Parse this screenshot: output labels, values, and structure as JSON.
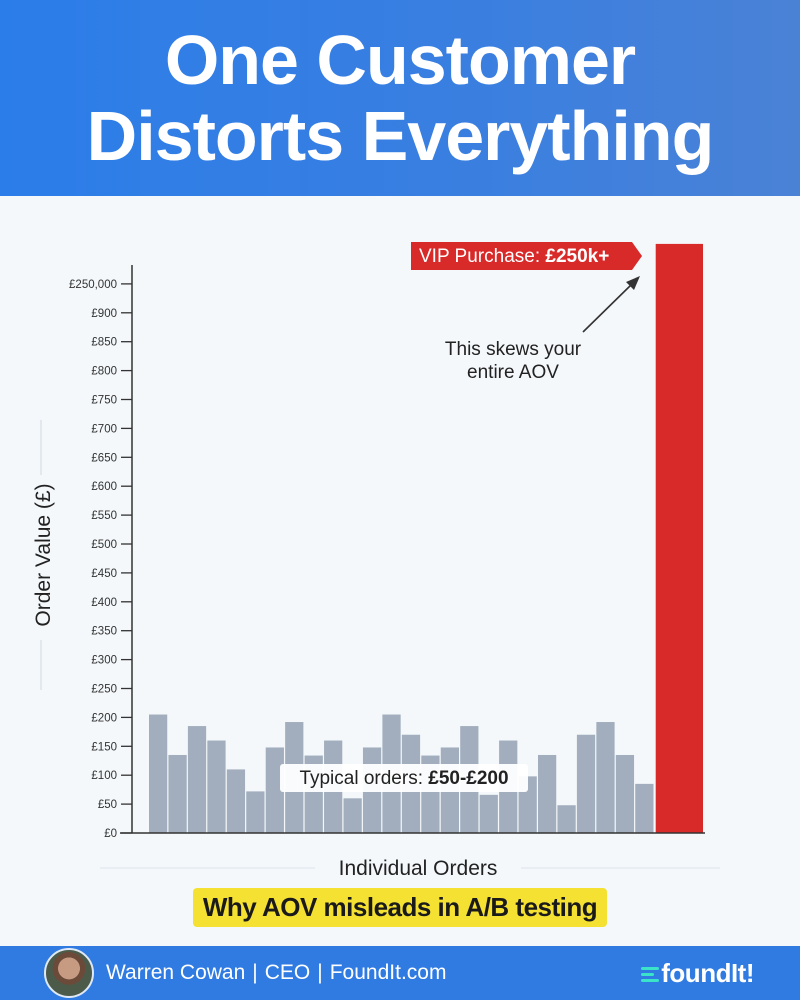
{
  "header": {
    "title_line1": "One Customer",
    "title_line2": "Distorts Everything"
  },
  "chart_data": {
    "type": "bar",
    "ylabel": "Order Value (£)",
    "xlabel": "Individual Orders",
    "y_ticks": [
      "£0",
      "£50",
      "£100",
      "£150",
      "£200",
      "£250",
      "£300",
      "£350",
      "£400",
      "£450",
      "£500",
      "£550",
      "£600",
      "£650",
      "£700",
      "£750",
      "£800",
      "£850",
      "£900",
      "£250,000"
    ],
    "axis_break_note": "axis jumps from £900 to £250,000",
    "values": [
      205,
      135,
      185,
      160,
      110,
      72,
      148,
      192,
      134,
      160,
      60,
      148,
      205,
      170,
      134,
      148,
      185,
      66,
      160,
      98,
      135,
      48,
      170,
      192,
      135,
      85
    ],
    "outlier": {
      "value": 250000,
      "label": "VIP Purchase: £250k+"
    },
    "annotations": {
      "typical": "Typical orders: £50-£200",
      "skew_line1": "This skews your",
      "skew_line2": "entire AOV"
    },
    "colors": {
      "bar": "#a2aebd",
      "outlier": "#d92a2a",
      "axis": "#333333"
    },
    "grid": false
  },
  "subtitle": "Why AOV misleads in A/B testing",
  "footer": {
    "name": "Warren Cowan",
    "role": "CEO",
    "site": "FoundIt.com",
    "logo_text": "foundIt!",
    "logo_accent": "#3be3c8"
  }
}
